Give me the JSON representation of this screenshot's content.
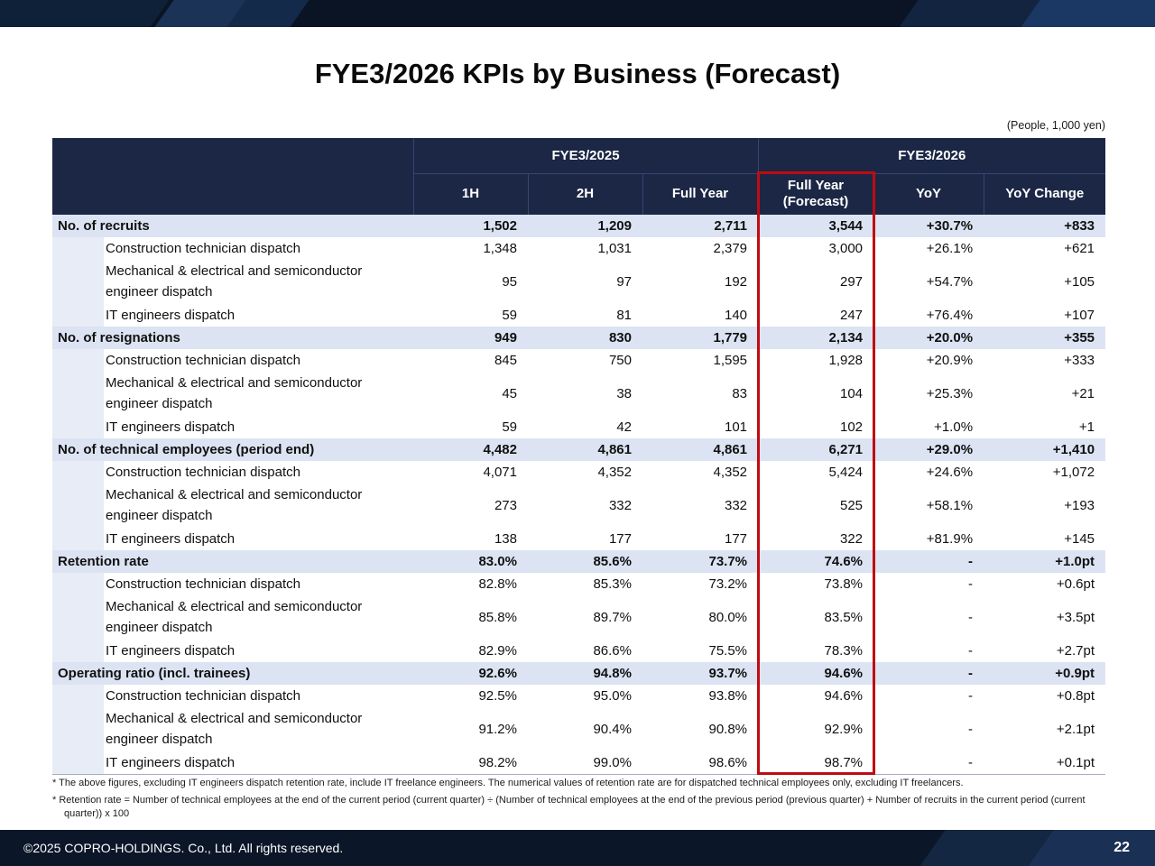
{
  "slide": {
    "title": "FYE3/2026 KPIs by Business (Forecast)",
    "unit_note": "(People, 1,000 yen)",
    "page_number": "22",
    "copyright": "©2025 COPRO-HOLDINGS. Co., Ltd. All rights reserved."
  },
  "table": {
    "col_groups": [
      {
        "label": "FYE3/2025",
        "span": 3
      },
      {
        "label": "FYE3/2026",
        "span": 3
      }
    ],
    "columns": [
      "1H",
      "2H",
      "Full Year",
      "Full Year (Forecast)",
      "YoY",
      "YoY Change"
    ],
    "rows": [
      {
        "label": "No. of recruits",
        "bold": true,
        "tall": false,
        "values": [
          "1,502",
          "1,209",
          "2,711",
          "3,544",
          "+30.7%",
          "+833"
        ]
      },
      {
        "label": "Construction technician dispatch",
        "bold": false,
        "tall": false,
        "values": [
          "1,348",
          "1,031",
          "2,379",
          "3,000",
          "+26.1%",
          "+621"
        ]
      },
      {
        "label": "Mechanical & electrical and semiconductor engineer dispatch",
        "bold": false,
        "tall": true,
        "values": [
          "95",
          "97",
          "192",
          "297",
          "+54.7%",
          "+105"
        ]
      },
      {
        "label": "IT engineers dispatch",
        "bold": false,
        "tall": false,
        "values": [
          "59",
          "81",
          "140",
          "247",
          "+76.4%",
          "+107"
        ]
      },
      {
        "label": "No. of resignations",
        "bold": true,
        "tall": false,
        "values": [
          "949",
          "830",
          "1,779",
          "2,134",
          "+20.0%",
          "+355"
        ]
      },
      {
        "label": "Construction technician dispatch",
        "bold": false,
        "tall": false,
        "values": [
          "845",
          "750",
          "1,595",
          "1,928",
          "+20.9%",
          "+333"
        ]
      },
      {
        "label": "Mechanical & electrical and semiconductor engineer dispatch",
        "bold": false,
        "tall": true,
        "values": [
          "45",
          "38",
          "83",
          "104",
          "+25.3%",
          "+21"
        ]
      },
      {
        "label": "IT engineers dispatch",
        "bold": false,
        "tall": false,
        "values": [
          "59",
          "42",
          "101",
          "102",
          "+1.0%",
          "+1"
        ]
      },
      {
        "label": "No. of technical employees (period end)",
        "bold": true,
        "tall": false,
        "values": [
          "4,482",
          "4,861",
          "4,861",
          "6,271",
          "+29.0%",
          "+1,410"
        ]
      },
      {
        "label": "Construction technician dispatch",
        "bold": false,
        "tall": false,
        "values": [
          "4,071",
          "4,352",
          "4,352",
          "5,424",
          "+24.6%",
          "+1,072"
        ]
      },
      {
        "label": "Mechanical & electrical and semiconductor engineer dispatch",
        "bold": false,
        "tall": true,
        "values": [
          "273",
          "332",
          "332",
          "525",
          "+58.1%",
          "+193"
        ]
      },
      {
        "label": "IT engineers dispatch",
        "bold": false,
        "tall": false,
        "values": [
          "138",
          "177",
          "177",
          "322",
          "+81.9%",
          "+145"
        ]
      },
      {
        "label": "Retention rate",
        "bold": true,
        "tall": false,
        "values": [
          "83.0%",
          "85.6%",
          "73.7%",
          "74.6%",
          "-",
          "+1.0pt"
        ]
      },
      {
        "label": "Construction technician dispatch",
        "bold": false,
        "tall": false,
        "values": [
          "82.8%",
          "85.3%",
          "73.2%",
          "73.8%",
          "-",
          "+0.6pt"
        ]
      },
      {
        "label": "Mechanical & electrical and semiconductor engineer dispatch",
        "bold": false,
        "tall": true,
        "values": [
          "85.8%",
          "89.7%",
          "80.0%",
          "83.5%",
          "-",
          "+3.5pt"
        ]
      },
      {
        "label": "IT engineers dispatch",
        "bold": false,
        "tall": false,
        "values": [
          "82.9%",
          "86.6%",
          "75.5%",
          "78.3%",
          "-",
          "+2.7pt"
        ]
      },
      {
        "label": "Operating ratio (incl. trainees)",
        "bold": true,
        "tall": false,
        "values": [
          "92.6%",
          "94.8%",
          "93.7%",
          "94.6%",
          "-",
          "+0.9pt"
        ]
      },
      {
        "label": "Construction technician dispatch",
        "bold": false,
        "tall": false,
        "values": [
          "92.5%",
          "95.0%",
          "93.8%",
          "94.6%",
          "-",
          "+0.8pt"
        ]
      },
      {
        "label": "Mechanical & electrical and semiconductor engineer dispatch",
        "bold": false,
        "tall": true,
        "values": [
          "91.2%",
          "90.4%",
          "90.8%",
          "92.9%",
          "-",
          "+2.1pt"
        ]
      },
      {
        "label": "IT engineers dispatch",
        "bold": false,
        "tall": false,
        "values": [
          "98.2%",
          "99.0%",
          "98.6%",
          "98.7%",
          "-",
          "+0.1pt"
        ]
      }
    ]
  },
  "footnotes": [
    "*  The above figures, excluding IT engineers dispatch retention rate, include IT freelance engineers. The numerical values of retention rate are for dispatched technical employees only, excluding IT freelancers.",
    "*  Retention rate = Number of technical employees at the end of the current period (current quarter) ÷ (Number of technical employees at the end of the previous period (previous quarter) + Number of recruits in the current period (current quarter)) x 100"
  ],
  "colors": {
    "accent_red": "#c00b12",
    "header_navy": "#1b2745",
    "section_row_bg": "#dce3f2",
    "bar_navy": "#0b1628"
  }
}
